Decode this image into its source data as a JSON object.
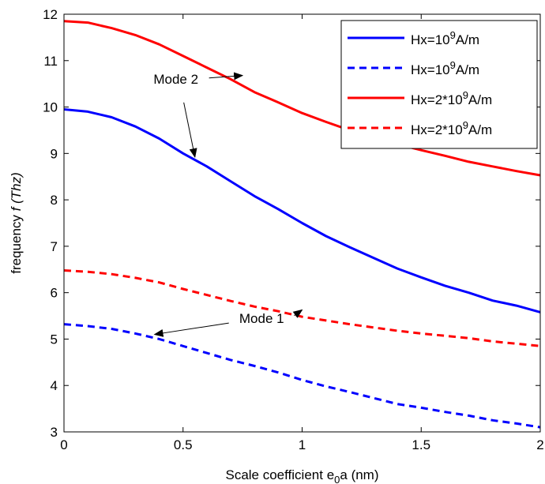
{
  "chart_data": {
    "type": "line",
    "title": "",
    "xlabel": {
      "main": "Scale coefficient e",
      "sub": "0",
      "tail": "a (nm)"
    },
    "ylabel": {
      "main": "frequency ",
      "italic": "f (Thz)"
    },
    "xlim": [
      0,
      2
    ],
    "ylim": [
      3,
      12
    ],
    "xticks": [
      0,
      0.5,
      1,
      1.5,
      2
    ],
    "xtick_labels": [
      "0",
      "0.5",
      "1",
      "1.5",
      "2"
    ],
    "yticks": [
      3,
      4,
      5,
      6,
      7,
      8,
      9,
      10,
      11,
      12
    ],
    "ytick_labels": [
      "3",
      "4",
      "5",
      "6",
      "7",
      "8",
      "9",
      "10",
      "11",
      "12"
    ],
    "grid": false,
    "legend_position": "top-right",
    "x": [
      0,
      0.1,
      0.2,
      0.3,
      0.4,
      0.5,
      0.6,
      0.7,
      0.8,
      0.9,
      1.0,
      1.1,
      1.2,
      1.3,
      1.4,
      1.5,
      1.6,
      1.7,
      1.8,
      1.9,
      2.0
    ],
    "series": [
      {
        "legend": {
          "base": "Hx=10",
          "sup": "9",
          "unit": "A/m"
        },
        "color": "#0000ff",
        "dash": "solid",
        "values": [
          9.95,
          9.9,
          9.78,
          9.58,
          9.32,
          9.0,
          8.72,
          8.4,
          8.08,
          7.8,
          7.5,
          7.22,
          6.98,
          6.75,
          6.52,
          6.33,
          6.15,
          6.0,
          5.83,
          5.72,
          5.58
        ]
      },
      {
        "legend": {
          "base": "Hx=10",
          "sup": "9",
          "unit": "A/m"
        },
        "color": "#0000ff",
        "dash": "dashed",
        "values": [
          5.32,
          5.28,
          5.22,
          5.12,
          5.0,
          4.85,
          4.7,
          4.55,
          4.42,
          4.28,
          4.12,
          3.98,
          3.86,
          3.73,
          3.6,
          3.52,
          3.43,
          3.35,
          3.25,
          3.18,
          3.1
        ]
      },
      {
        "legend": {
          "base": "Hx=2*10",
          "sup": "9",
          "unit": "A/m"
        },
        "color": "#ff0000",
        "dash": "solid",
        "values": [
          11.85,
          11.82,
          11.7,
          11.55,
          11.35,
          11.1,
          10.85,
          10.6,
          10.32,
          10.1,
          9.87,
          9.68,
          9.5,
          9.35,
          9.2,
          9.07,
          8.95,
          8.82,
          8.72,
          8.62,
          8.53
        ]
      },
      {
        "legend": {
          "base": "Hx=2*10",
          "sup": "9",
          "unit": "A/m"
        },
        "color": "#ff0000",
        "dash": "dashed",
        "values": [
          6.48,
          6.45,
          6.4,
          6.32,
          6.22,
          6.08,
          5.95,
          5.82,
          5.7,
          5.6,
          5.48,
          5.4,
          5.32,
          5.25,
          5.18,
          5.12,
          5.07,
          5.02,
          4.95,
          4.9,
          4.85
        ]
      }
    ],
    "annotations": [
      {
        "text": "Mode 2",
        "at_x": 0.47,
        "at_y": 10.5,
        "arrows": [
          {
            "to_x": 0.75,
            "to_y": 10.68
          },
          {
            "to_x": 0.55,
            "to_y": 8.92
          }
        ]
      },
      {
        "text": "Mode 1",
        "at_x": 0.83,
        "at_y": 5.35,
        "arrows": [
          {
            "to_x": 0.38,
            "to_y": 5.1
          },
          {
            "to_x": 1.0,
            "to_y": 5.63
          }
        ]
      }
    ]
  }
}
